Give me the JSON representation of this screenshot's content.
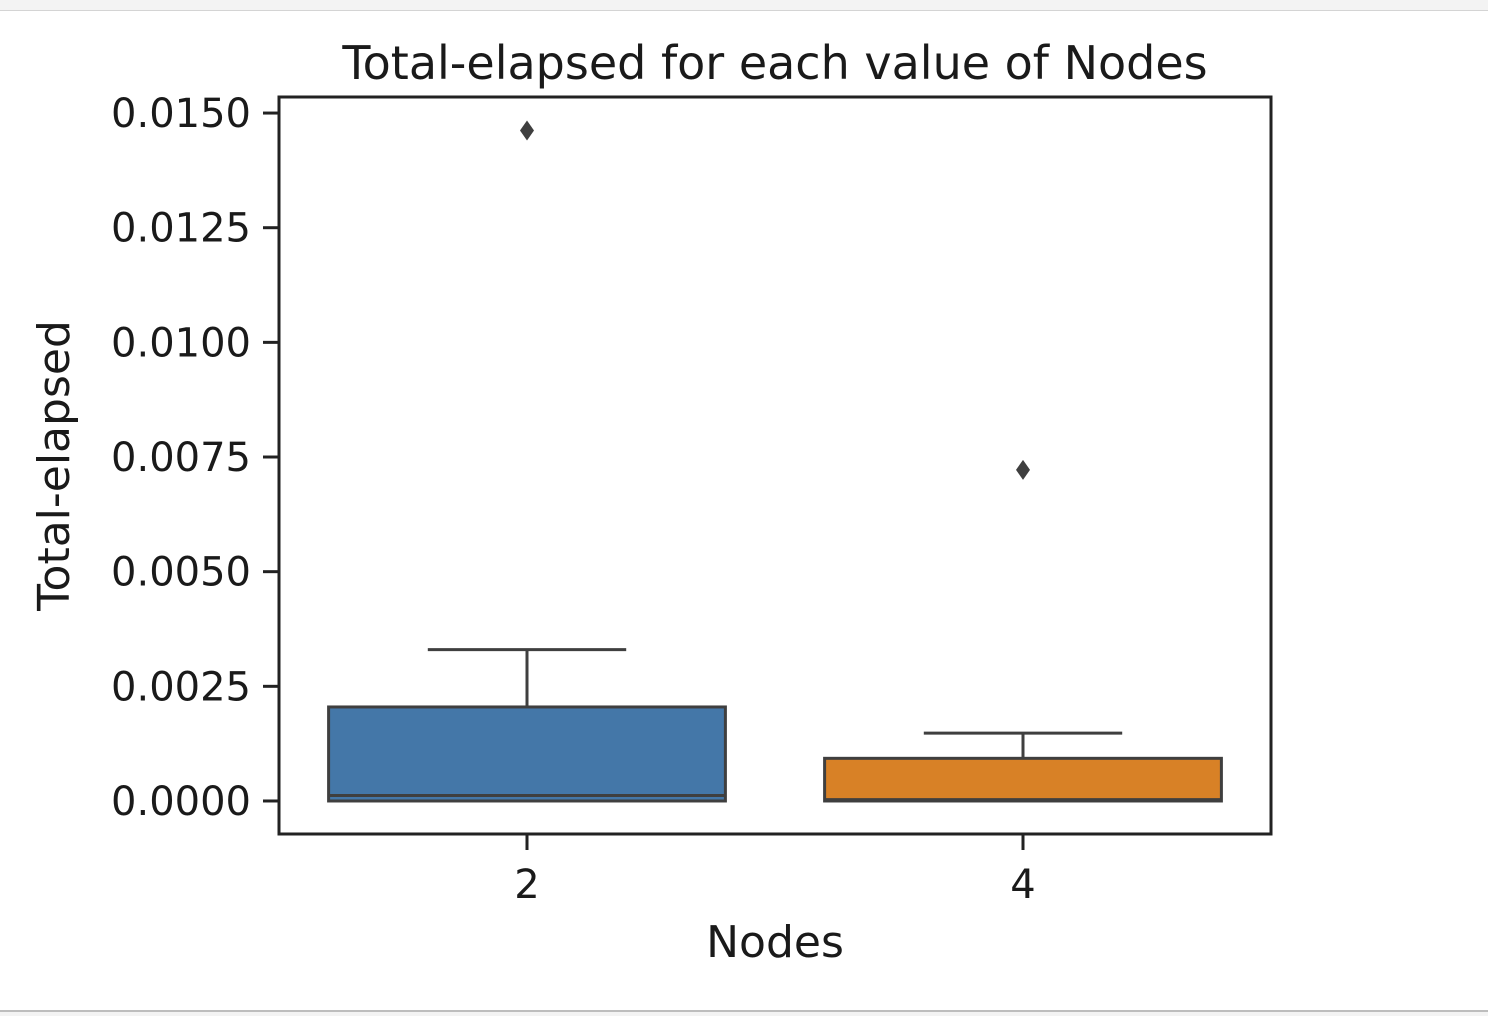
{
  "chart_data": {
    "type": "box",
    "title": "Total-elapsed for each value of Nodes",
    "xlabel": "Nodes",
    "ylabel": "Total-elapsed",
    "categories": [
      "2",
      "4"
    ],
    "ylim": [
      -0.00072,
      0.01535
    ],
    "yticks": [
      0.0,
      0.0025,
      0.005,
      0.0075,
      0.01,
      0.0125,
      0.015
    ],
    "ytick_labels": [
      "0.0000",
      "0.0025",
      "0.0050",
      "0.0075",
      "0.0100",
      "0.0125",
      "0.0150"
    ],
    "boxes": [
      {
        "category": "2",
        "color": "#4477a8",
        "whisker_low": 0.0,
        "q1": 0.0,
        "median": 0.00012,
        "q3": 0.00205,
        "whisker_high": 0.0033,
        "outliers": [
          0.01462
        ]
      },
      {
        "category": "4",
        "color": "#d88126",
        "whisker_low": 0.0,
        "q1": 0.0,
        "median": 3e-05,
        "q3": 0.00093,
        "whisker_high": 0.00148,
        "outliers": [
          0.00722
        ]
      }
    ],
    "grid": false,
    "legend": "none"
  }
}
